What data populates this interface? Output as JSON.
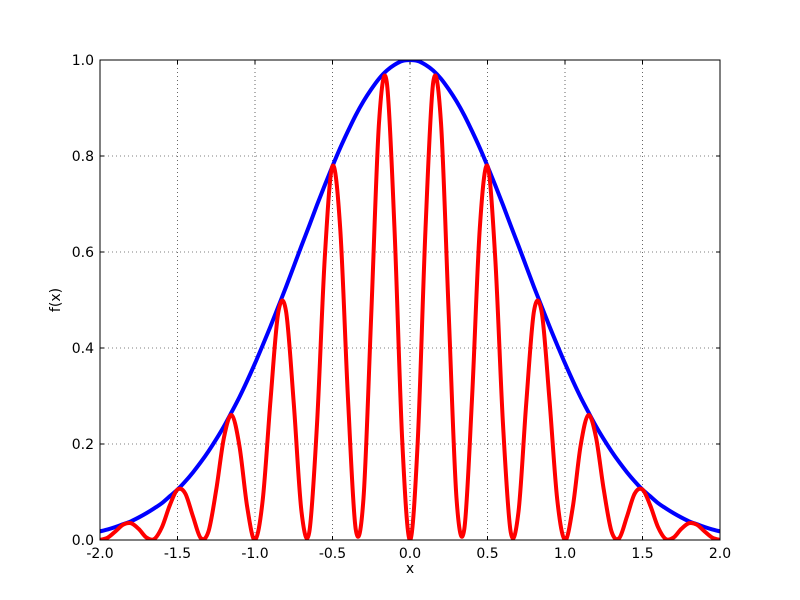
{
  "chart_data": {
    "type": "line",
    "xlabel": "x",
    "ylabel": "f(x)",
    "x": [
      -2,
      -1.95,
      -1.9,
      -1.85,
      -1.8,
      -1.75,
      -1.7,
      -1.65,
      -1.6,
      -1.55,
      -1.5,
      -1.45,
      -1.4,
      -1.35,
      -1.3,
      -1.25,
      -1.2,
      -1.15,
      -1.1,
      -1.05,
      -1,
      -0.95,
      -0.9,
      -0.85,
      -0.8,
      -0.75,
      -0.7,
      -0.65,
      -0.6,
      -0.55,
      -0.5,
      -0.45,
      -0.4,
      -0.35,
      -0.3,
      -0.25,
      -0.2,
      -0.15,
      -0.1,
      -0.05,
      0,
      0.05,
      0.1,
      0.15,
      0.2,
      0.25,
      0.3,
      0.35,
      0.4,
      0.45,
      0.5,
      0.55,
      0.6,
      0.65,
      0.7,
      0.75,
      0.8,
      0.85,
      0.9,
      0.95,
      1,
      1.05,
      1.1,
      1.15,
      1.2,
      1.25,
      1.3,
      1.35,
      1.4,
      1.45,
      1.5,
      1.55,
      1.6,
      1.65,
      1.7,
      1.75,
      1.8,
      1.85,
      1.9,
      1.95,
      2
    ],
    "series": [
      {
        "color": "#0000ff",
        "values": [
          0.018,
          0.022,
          0.027,
          0.033,
          0.039,
          0.047,
          0.056,
          0.066,
          0.077,
          0.091,
          0.105,
          0.122,
          0.141,
          0.162,
          0.185,
          0.21,
          0.237,
          0.267,
          0.298,
          0.332,
          0.368,
          0.406,
          0.445,
          0.486,
          0.527,
          0.57,
          0.613,
          0.655,
          0.698,
          0.739,
          0.779,
          0.817,
          0.852,
          0.885,
          0.914,
          0.939,
          0.961,
          0.978,
          0.99,
          0.998,
          1,
          0.998,
          0.99,
          0.978,
          0.961,
          0.939,
          0.914,
          0.885,
          0.852,
          0.817,
          0.779,
          0.739,
          0.698,
          0.655,
          0.613,
          0.57,
          0.527,
          0.486,
          0.445,
          0.406,
          0.368,
          0.332,
          0.298,
          0.267,
          0.237,
          0.21,
          0.185,
          0.162,
          0.141,
          0.122,
          0.105,
          0.091,
          0.077,
          0.066,
          0.056,
          0.047,
          0.039,
          0.033,
          0.027,
          0.022,
          0.018
        ]
      },
      {
        "color": "#ff0000",
        "values": [
          0,
          0.005,
          0.018,
          0.032,
          0.035,
          0.023,
          0.005,
          0.002,
          0.027,
          0.072,
          0.105,
          0.097,
          0.049,
          0.004,
          0.018,
          0.105,
          0.214,
          0.26,
          0.195,
          0.068,
          0,
          0.084,
          0.291,
          0.474,
          0.477,
          0.285,
          0.059,
          0.016,
          0.241,
          0.587,
          0.779,
          0.648,
          0.294,
          0.022,
          0.087,
          0.47,
          0.869,
          0.954,
          0.648,
          0.206,
          0,
          0.206,
          0.648,
          0.954,
          0.869,
          0.47,
          0.087,
          0.022,
          0.294,
          0.648,
          0.779,
          0.587,
          0.241,
          0.016,
          0.059,
          0.285,
          0.477,
          0.474,
          0.291,
          0.084,
          0,
          0.068,
          0.195,
          0.26,
          0.214,
          0.105,
          0.018,
          0.004,
          0.049,
          0.097,
          0.105,
          0.072,
          0.027,
          0.002,
          0.005,
          0.023,
          0.035,
          0.032,
          0.018,
          0.005,
          0
        ]
      }
    ],
    "xlim": [
      -2,
      2
    ],
    "xticks": [
      {
        "value": -2,
        "label": "-2.0"
      },
      {
        "value": -1.5,
        "label": "-1.5"
      },
      {
        "value": -1,
        "label": "-1.0"
      },
      {
        "value": -0.5,
        "label": "-0.5"
      },
      {
        "value": 0,
        "label": "0.0"
      },
      {
        "value": 0.5,
        "label": "0.5"
      },
      {
        "value": 1,
        "label": "1.0"
      },
      {
        "value": 1.5,
        "label": "1.5"
      },
      {
        "value": 2,
        "label": "2.0"
      }
    ],
    "ylim": [
      0,
      1
    ],
    "yticks": [
      {
        "value": 0,
        "label": "0.0"
      },
      0.2,
      0.4,
      0.6,
      0.8,
      {
        "value": 1,
        "label": "1.0"
      }
    ],
    "grid": true
  }
}
